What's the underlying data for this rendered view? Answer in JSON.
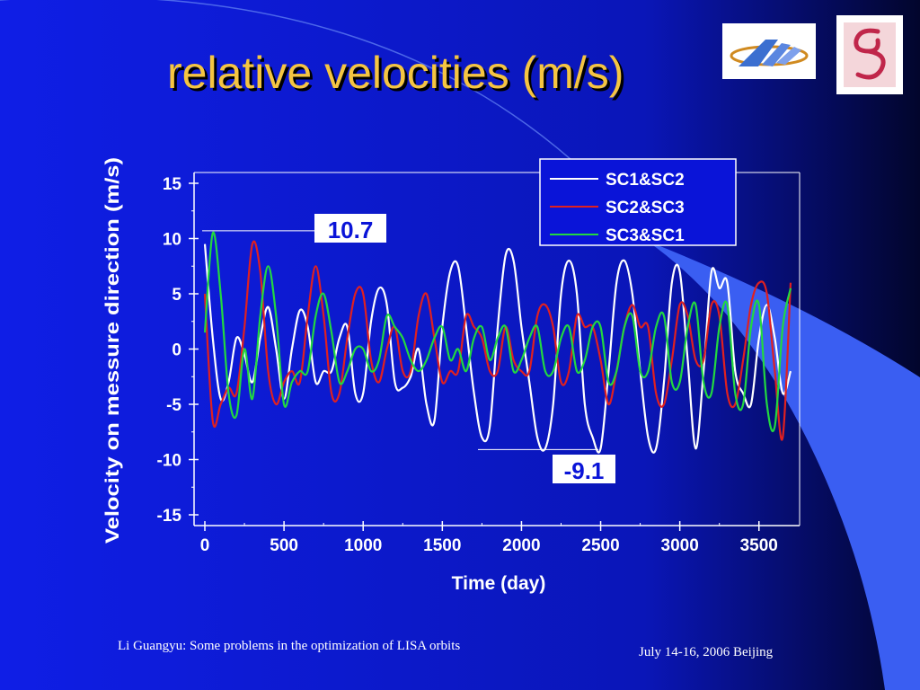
{
  "slide": {
    "title": "relative velocities (m/s)",
    "footer_left": "Li Guangyu: Some problems in the optimization of LISA orbits",
    "footer_right": "July 14-16, 2006   Beijing",
    "colors": {
      "background_start": "#0f1ee6",
      "background_end": "#02052c",
      "title": "#f5c542",
      "accent_band": "#3a5ef2"
    }
  },
  "chart_data": {
    "type": "line",
    "title": "",
    "xlabel": "Time  (day)",
    "ylabel": "Velocity on messure direction  (m/s)",
    "xlim": [
      0,
      3700
    ],
    "ylim": [
      -15,
      15
    ],
    "xticks": [
      "0",
      "500",
      "1000",
      "1500",
      "2000",
      "2500",
      "3000",
      "3500"
    ],
    "yticks": [
      "15",
      "10",
      "5",
      "0",
      "-5",
      "-10",
      "-15"
    ],
    "legend": {
      "position": "top-right"
    },
    "series": [
      {
        "name": "SC1&SC2",
        "color": "#ffffff",
        "x": [
          0,
          50,
          100,
          150,
          200,
          250,
          300,
          350,
          400,
          450,
          500,
          550,
          600,
          650,
          700,
          750,
          800,
          850,
          900,
          950,
          1000,
          1050,
          1100,
          1150,
          1200,
          1250,
          1300,
          1350,
          1400,
          1450,
          1500,
          1550,
          1600,
          1650,
          1700,
          1750,
          1800,
          1850,
          1900,
          1950,
          2000,
          2050,
          2100,
          2150,
          2200,
          2250,
          2300,
          2350,
          2400,
          2450,
          2500,
          2550,
          2600,
          2650,
          2700,
          2750,
          2800,
          2850,
          2900,
          2950,
          3000,
          3050,
          3100,
          3150,
          3200,
          3250,
          3300,
          3350,
          3400,
          3450,
          3500,
          3550,
          3600,
          3650,
          3700
        ],
        "y": [
          9.5,
          1,
          -4.5,
          -3,
          1,
          -0.5,
          -3,
          1,
          3.8,
          0,
          -4.5,
          0,
          3.5,
          2,
          -3,
          -2,
          -2,
          1,
          2,
          -4,
          -4,
          2.5,
          5.5,
          4,
          -3,
          -3.5,
          -2.5,
          0,
          -5,
          -6.5,
          2,
          7,
          7.5,
          2,
          -4,
          -8,
          -7,
          2,
          8.5,
          8,
          2,
          -3,
          -8,
          -9,
          -5,
          5,
          8,
          5,
          -5,
          -8,
          -9,
          -2,
          6,
          8,
          5,
          -2,
          -8,
          -9,
          -3,
          6,
          7,
          -1,
          -9,
          -2,
          7,
          5.5,
          6,
          -2,
          -4,
          -5,
          1,
          4,
          1,
          -4,
          -2
        ]
      },
      {
        "name": "SC2&SC3",
        "color": "#e02020",
        "x": [
          0,
          50,
          100,
          150,
          200,
          250,
          300,
          350,
          400,
          450,
          500,
          550,
          600,
          650,
          700,
          750,
          800,
          850,
          900,
          950,
          1000,
          1050,
          1100,
          1150,
          1200,
          1250,
          1300,
          1350,
          1400,
          1450,
          1500,
          1550,
          1600,
          1650,
          1700,
          1750,
          1800,
          1850,
          1900,
          1950,
          2000,
          2050,
          2100,
          2150,
          2200,
          2250,
          2300,
          2350,
          2400,
          2450,
          2500,
          2550,
          2600,
          2650,
          2700,
          2750,
          2800,
          2850,
          2900,
          2950,
          3000,
          3050,
          3100,
          3150,
          3200,
          3250,
          3300,
          3350,
          3400,
          3450,
          3500,
          3550,
          3600,
          3650,
          3700
        ],
        "y": [
          5,
          -6.5,
          -5,
          -3.5,
          -4,
          2,
          9.5,
          7,
          -2,
          -5,
          -3,
          -2,
          -3,
          3,
          7.5,
          3,
          -4,
          -4,
          1,
          5,
          5,
          -1,
          -3,
          0,
          2,
          -2,
          -2,
          3,
          5,
          1,
          -3,
          -2,
          -2,
          3,
          2,
          1,
          -2,
          -2,
          2,
          -1,
          -2,
          -2,
          3,
          4,
          2,
          -3,
          -2,
          3,
          2,
          2,
          -1,
          -5,
          -2,
          2,
          4,
          2,
          2,
          -4,
          -5,
          -1,
          4,
          3,
          -1,
          -1,
          4,
          3,
          -4,
          -5,
          -1,
          4,
          6,
          5,
          -2,
          -8,
          6
        ]
      },
      {
        "name": "SC3&SC1",
        "color": "#22d840",
        "x": [
          0,
          50,
          100,
          150,
          200,
          250,
          300,
          350,
          400,
          450,
          500,
          550,
          600,
          650,
          700,
          750,
          800,
          850,
          900,
          950,
          1000,
          1050,
          1100,
          1150,
          1200,
          1250,
          1300,
          1350,
          1400,
          1450,
          1500,
          1550,
          1600,
          1650,
          1700,
          1750,
          1800,
          1850,
          1900,
          1950,
          2000,
          2050,
          2100,
          2150,
          2200,
          2250,
          2300,
          2350,
          2400,
          2450,
          2500,
          2550,
          2600,
          2650,
          2700,
          2750,
          2800,
          2850,
          2900,
          2950,
          3000,
          3050,
          3100,
          3150,
          3200,
          3250,
          3300,
          3350,
          3400,
          3450,
          3500,
          3550,
          3600,
          3650,
          3700
        ],
        "y": [
          1.5,
          10.5,
          5,
          -4,
          -6,
          0,
          -4.5,
          3,
          7.5,
          3,
          -5,
          -3,
          -2,
          -2,
          3,
          5,
          1.5,
          -3,
          -2,
          0,
          0,
          -2,
          -1,
          3,
          2,
          1,
          -1,
          -2,
          -1,
          1,
          2,
          -1,
          0,
          -2,
          1,
          2,
          -1,
          1,
          2,
          -2,
          -1,
          1,
          2,
          -2,
          -2,
          1,
          2,
          -2,
          -1,
          2,
          2,
          -3,
          -2,
          2,
          3,
          -2,
          -2,
          2,
          3,
          -3,
          -3,
          2,
          4,
          -3,
          -4,
          2,
          4,
          -4,
          -5,
          2,
          4,
          -5,
          -7,
          2,
          5.5
        ]
      }
    ],
    "annotations": [
      {
        "text": "10.7",
        "value": 10.7
      },
      {
        "text": "-9.1",
        "value": -9.1
      }
    ]
  }
}
